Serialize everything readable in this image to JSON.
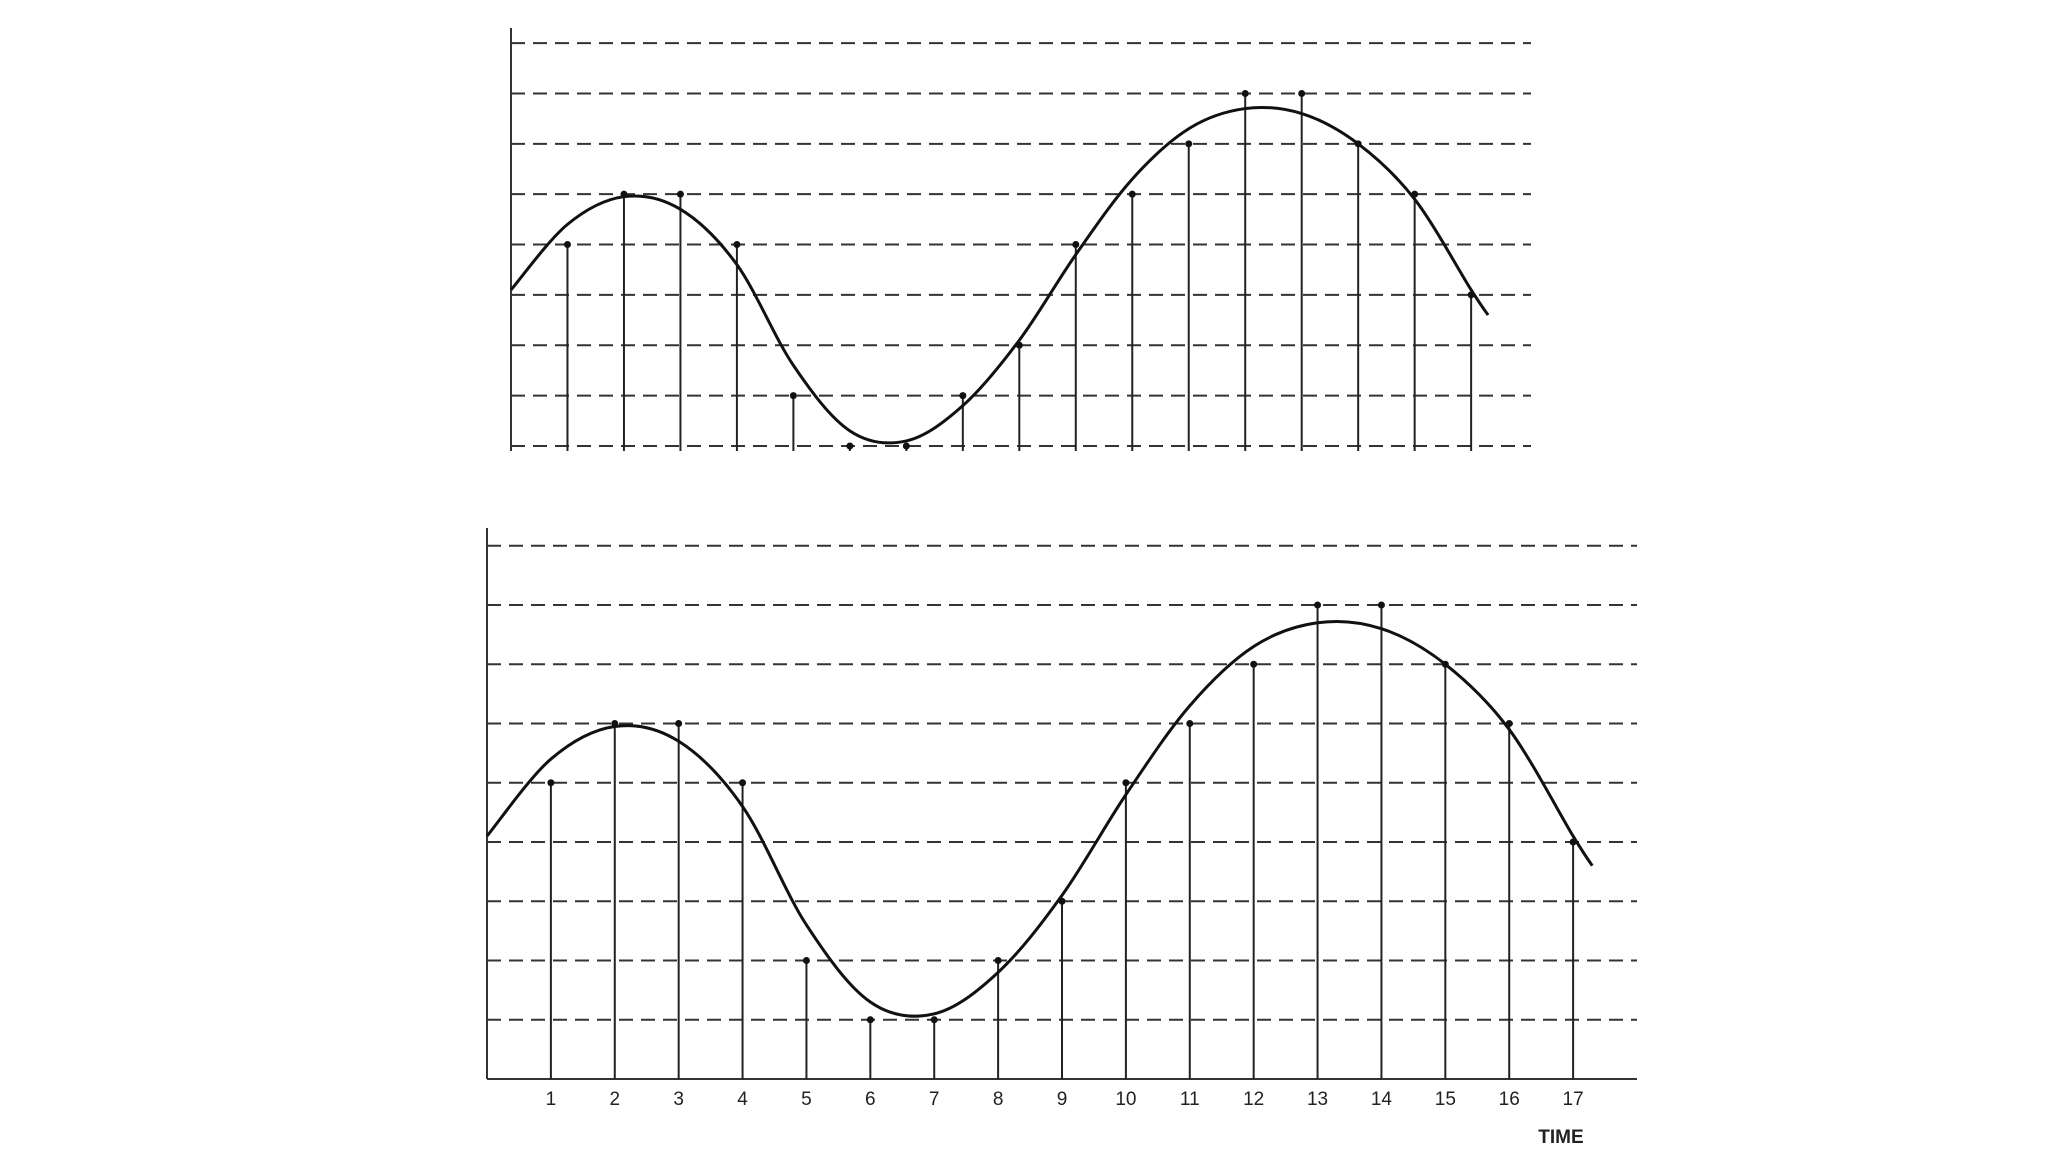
{
  "chart_data": [
    {
      "type": "stem",
      "x": [
        1,
        2,
        3,
        4,
        5,
        6,
        7,
        8,
        9,
        10,
        11,
        12,
        13,
        14,
        15,
        16,
        17
      ],
      "values": [
        4,
        5,
        5,
        4,
        1,
        0,
        0,
        1,
        2,
        4,
        5,
        6,
        7,
        7,
        6,
        5,
        3
      ],
      "signal": {
        "x": [
          0,
          1,
          2,
          3,
          4,
          5,
          6,
          7,
          8,
          9,
          10,
          11,
          12,
          13,
          14,
          15,
          16,
          17,
          17.3
        ],
        "values": [
          3.1,
          4.4,
          4.95,
          4.7,
          3.6,
          1.6,
          0.3,
          0.1,
          0.8,
          2.1,
          3.8,
          5.3,
          6.3,
          6.7,
          6.6,
          6.0,
          4.9,
          3.1,
          2.6
        ]
      },
      "xlim": [
        0,
        18.06
      ],
      "ylim": [
        -0.1,
        8.3
      ],
      "yticks": [
        0,
        1,
        2,
        3,
        4,
        5,
        6,
        7,
        8
      ],
      "grid": true
    },
    {
      "type": "stem",
      "x": [
        1,
        2,
        3,
        4,
        5,
        6,
        7,
        8,
        9,
        10,
        11,
        12,
        13,
        14,
        15,
        16,
        17
      ],
      "values": [
        4,
        5,
        5,
        4,
        1,
        0,
        0,
        1,
        2,
        4,
        5,
        6,
        7,
        7,
        6,
        5,
        3
      ],
      "signal": {
        "x": [
          0,
          1,
          2,
          3,
          4,
          5,
          6,
          7,
          8,
          9,
          10,
          11,
          12,
          13,
          14,
          15,
          16,
          17,
          17.3
        ],
        "values": [
          3.1,
          4.4,
          4.95,
          4.7,
          3.6,
          1.6,
          0.3,
          0.1,
          0.8,
          2.1,
          3.8,
          5.3,
          6.3,
          6.7,
          6.6,
          6.0,
          4.9,
          3.1,
          2.6
        ]
      },
      "xlim": [
        0,
        18
      ],
      "ylim": [
        -1,
        8.3
      ],
      "yticks": [
        0,
        1,
        2,
        3,
        4,
        5,
        6,
        7,
        8
      ],
      "grid": true,
      "xticks": [
        1,
        2,
        3,
        4,
        5,
        6,
        7,
        8,
        9,
        10,
        11,
        12,
        13,
        14,
        15,
        16,
        17
      ],
      "xlabel": "TIME"
    }
  ]
}
